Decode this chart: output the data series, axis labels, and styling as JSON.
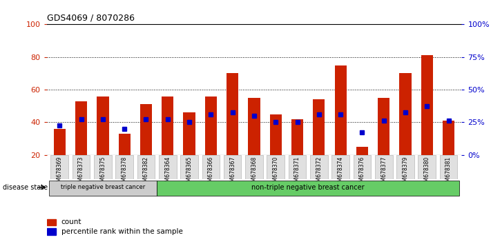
{
  "title": "GDS4069 / 8070286",
  "samples": [
    "GSM678369",
    "GSM678373",
    "GSM678375",
    "GSM678378",
    "GSM678382",
    "GSM678364",
    "GSM678365",
    "GSM678366",
    "GSM678367",
    "GSM678368",
    "GSM678370",
    "GSM678371",
    "GSM678372",
    "GSM678374",
    "GSM678376",
    "GSM678377",
    "GSM678379",
    "GSM678380",
    "GSM678381"
  ],
  "bar_heights": [
    36,
    53,
    56,
    33,
    51,
    56,
    46,
    56,
    70,
    55,
    45,
    42,
    54,
    75,
    25,
    55,
    70,
    81,
    41
  ],
  "blue_markers": [
    38,
    42,
    42,
    36,
    42,
    42,
    40,
    45,
    46,
    44,
    40,
    40,
    45,
    45,
    34,
    41,
    46,
    50,
    41
  ],
  "bar_bottom": 20,
  "ylim": [
    20,
    100
  ],
  "yticks_left": [
    20,
    40,
    60,
    80,
    100
  ],
  "right_tick_positions": [
    20,
    40,
    60,
    80,
    100
  ],
  "right_tick_labels": [
    "0%",
    "25%",
    "50%",
    "75%",
    "100%"
  ],
  "bar_color": "#cc2200",
  "blue_color": "#0000cc",
  "group1_label": "triple negative breast cancer",
  "group2_label": "non-triple negative breast cancer",
  "group1_count": 5,
  "group2_count": 14,
  "group1_color": "#cccccc",
  "group2_color": "#66cc66",
  "disease_label": "disease state",
  "legend_count": "count",
  "legend_pct": "percentile rank within the sample",
  "background_color": "#ffffff",
  "bar_width": 0.55
}
